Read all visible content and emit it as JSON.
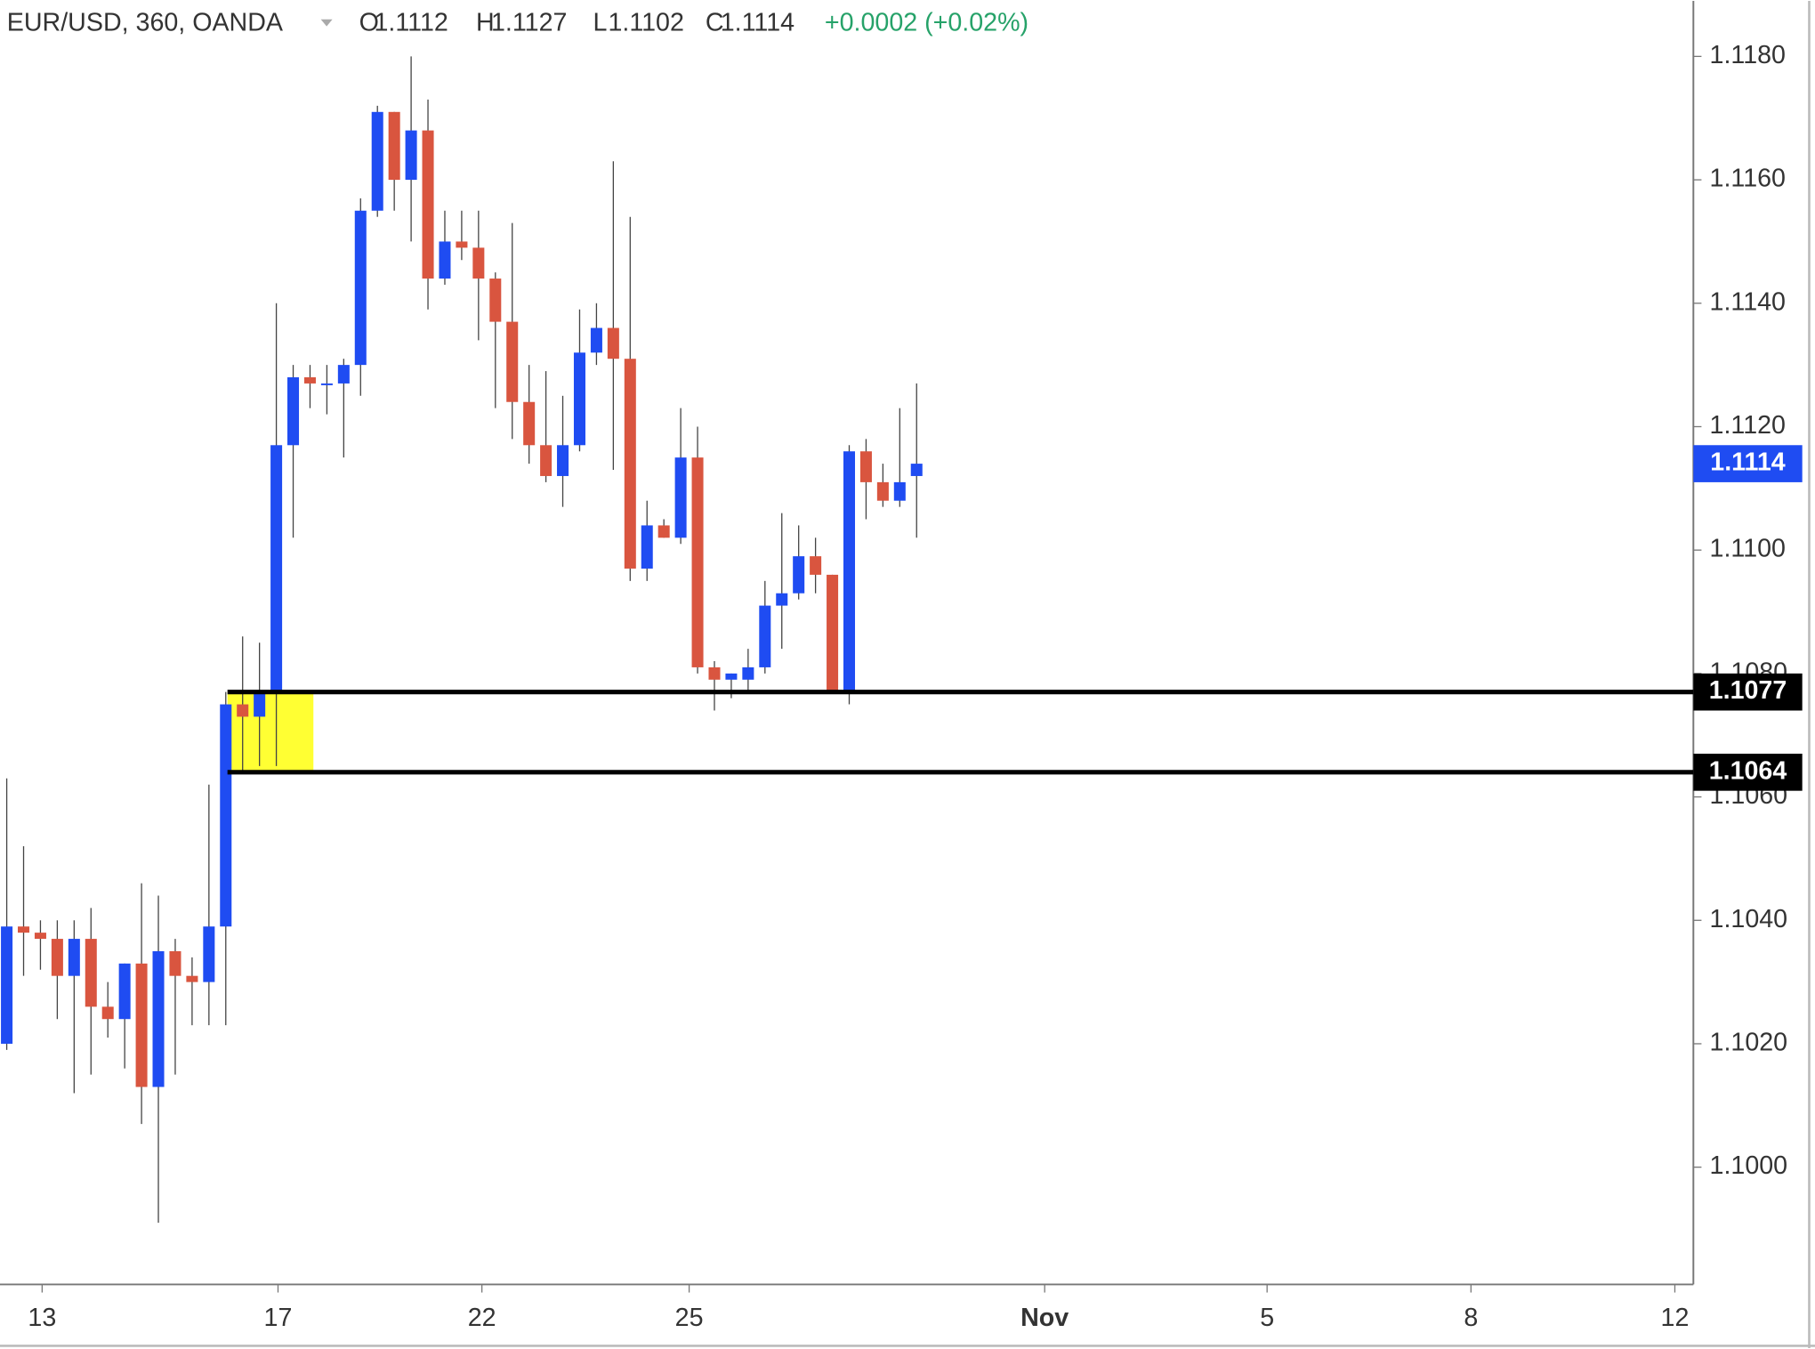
{
  "chart_data": {
    "type": "candlestick",
    "header": {
      "symbol": "EUR/USD, 360, OANDA",
      "ohlc_letters": [
        "O",
        "H",
        "L",
        "C"
      ],
      "change": "+0.0002 (+0.02%)"
    },
    "x": [
      0,
      1,
      2,
      3,
      4,
      5,
      6,
      7,
      8,
      9,
      10,
      11,
      12,
      13,
      14,
      15,
      16,
      17,
      18,
      19,
      20,
      21,
      22,
      23,
      24,
      25,
      26,
      27,
      28,
      29,
      30,
      31,
      32,
      33,
      34,
      35,
      36,
      37,
      38,
      39,
      40,
      41,
      42,
      43,
      44,
      45,
      46,
      47,
      48,
      49,
      50,
      51,
      52,
      53,
      54
    ],
    "open": [
      1.102,
      1.1039,
      1.1038,
      1.1037,
      1.1031,
      1.1037,
      1.1026,
      1.1024,
      1.1033,
      1.1013,
      1.1035,
      1.1031,
      1.103,
      1.1039,
      1.1075,
      1.1073,
      1.1077,
      1.1117,
      1.1128,
      1.1127,
      1.1127,
      1.113,
      1.1155,
      1.1171,
      1.116,
      1.1168,
      1.1144,
      1.115,
      1.1149,
      1.1144,
      1.1137,
      1.1124,
      1.1117,
      1.1112,
      1.1117,
      1.1132,
      1.1136,
      1.1131,
      1.1097,
      1.1104,
      1.1102,
      1.1115,
      1.1081,
      1.1079,
      1.1079,
      1.1081,
      1.1091,
      1.1093,
      1.1099,
      1.1096,
      1.1077,
      1.1116,
      1.1111,
      1.1108,
      1.1112
    ],
    "high": [
      1.1063,
      1.1052,
      1.104,
      1.104,
      1.104,
      1.1042,
      1.103,
      1.1033,
      1.1046,
      1.1044,
      1.1037,
      1.1034,
      1.1062,
      1.1077,
      1.1086,
      1.1085,
      1.114,
      1.113,
      1.113,
      1.113,
      1.1131,
      1.1157,
      1.1172,
      1.1171,
      1.118,
      1.1173,
      1.1155,
      1.1155,
      1.1155,
      1.1145,
      1.1153,
      1.113,
      1.1129,
      1.1125,
      1.1139,
      1.114,
      1.1163,
      1.1154,
      1.1108,
      1.1105,
      1.1123,
      1.112,
      1.1082,
      1.108,
      1.1084,
      1.1095,
      1.1106,
      1.1104,
      1.1102,
      1.1096,
      1.1117,
      1.1118,
      1.1114,
      1.1123,
      1.1127
    ],
    "low": [
      1.1019,
      1.1031,
      1.1032,
      1.1024,
      1.1012,
      1.1015,
      1.1021,
      1.1016,
      1.1007,
      1.0991,
      1.1015,
      1.1023,
      1.1023,
      1.1023,
      1.1064,
      1.1065,
      1.1065,
      1.1102,
      1.1123,
      1.1122,
      1.1115,
      1.1125,
      1.1154,
      1.1155,
      1.115,
      1.1139,
      1.1143,
      1.1147,
      1.1134,
      1.1123,
      1.1118,
      1.1114,
      1.1111,
      1.1107,
      1.1116,
      1.113,
      1.1113,
      1.1095,
      1.1095,
      1.1102,
      1.1101,
      1.108,
      1.1074,
      1.1076,
      1.1077,
      1.108,
      1.1084,
      1.1092,
      1.1093,
      1.1077,
      1.1075,
      1.1105,
      1.1107,
      1.1107,
      1.1102
    ],
    "close": [
      1.1039,
      1.1038,
      1.1037,
      1.1031,
      1.1037,
      1.1026,
      1.1024,
      1.1033,
      1.1013,
      1.1035,
      1.1031,
      1.103,
      1.1039,
      1.1075,
      1.1073,
      1.1077,
      1.1117,
      1.1128,
      1.1127,
      1.1127,
      1.113,
      1.1155,
      1.1171,
      1.116,
      1.1168,
      1.1144,
      1.115,
      1.1149,
      1.1144,
      1.1137,
      1.1124,
      1.1117,
      1.1112,
      1.1117,
      1.1132,
      1.1136,
      1.1131,
      1.1097,
      1.1104,
      1.1102,
      1.1115,
      1.1081,
      1.1079,
      1.108,
      1.1081,
      1.1091,
      1.1093,
      1.1099,
      1.1096,
      1.1077,
      1.1116,
      1.1111,
      1.1108,
      1.1111,
      1.1114
    ],
    "up_color": "#1f4cf2",
    "down_color": "#d9553f",
    "xlim": [
      -0.4,
      100.1
    ],
    "xticks": [
      {
        "value": 2.1,
        "label": "13"
      },
      {
        "value": 16.1,
        "label": "17"
      },
      {
        "value": 28.2,
        "label": "22"
      },
      {
        "value": 40.5,
        "label": "25"
      },
      {
        "value": 61.6,
        "label": "Nov"
      },
      {
        "value": 74.8,
        "label": "5"
      },
      {
        "value": 86.9,
        "label": "8"
      },
      {
        "value": 99.0,
        "label": "12"
      }
    ],
    "ylim": [
      1.0981,
      1.1189
    ],
    "yticks": [
      {
        "value": 1.1,
        "label": "1.1000"
      },
      {
        "value": 1.102,
        "label": "1.1020"
      },
      {
        "value": 1.104,
        "label": "1.1040"
      },
      {
        "value": 1.106,
        "label": "1.1060"
      },
      {
        "value": 1.108,
        "label": "1.1080"
      },
      {
        "value": 1.11,
        "label": "1.1100"
      },
      {
        "value": 1.112,
        "label": "1.1120"
      },
      {
        "value": 1.114,
        "label": "1.1140"
      },
      {
        "value": 1.116,
        "label": "1.1160"
      },
      {
        "value": 1.118,
        "label": "1.1180"
      }
    ],
    "levels": [
      1.1077,
      1.1064
    ],
    "zone": {
      "x": [
        13.1,
        18.2
      ],
      "color": "#ffff33"
    }
  }
}
